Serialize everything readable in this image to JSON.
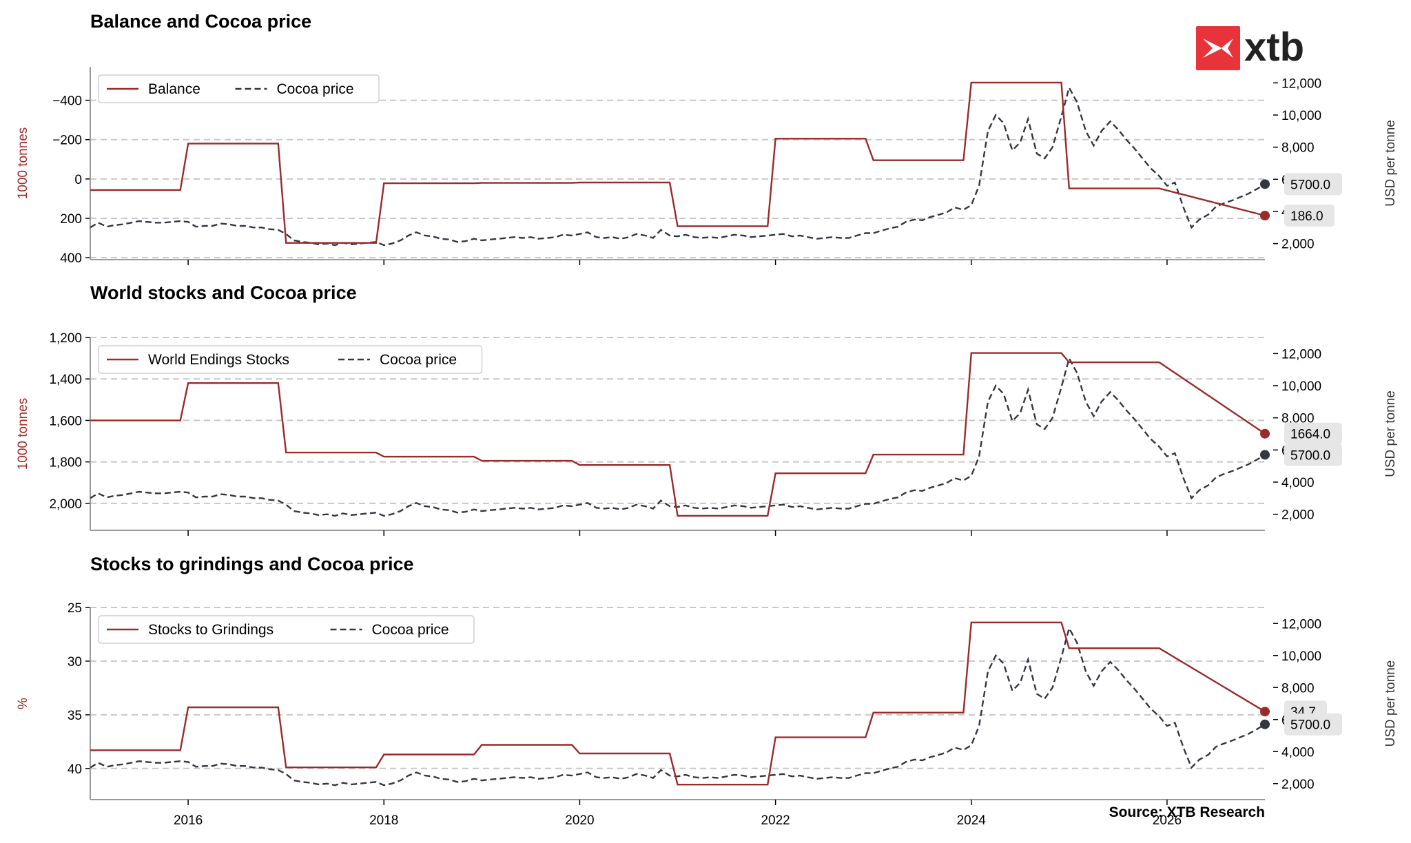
{
  "colors": {
    "primary": "#9b2a2a",
    "price": "#333740",
    "grid": "#c8c8c8",
    "axis": "#9a9a9a",
    "label_bg": "#e6e6e6",
    "logo_red": "#e8333a"
  },
  "brand": {
    "logo_text": "xtb",
    "logo_icon": "xtb-logo-icon"
  },
  "source": "Source: XTB Research",
  "x_axis": {
    "range": [
      2015.0,
      2027.0
    ],
    "ticks": [
      2016,
      2018,
      2020,
      2022,
      2024,
      2026
    ],
    "tick_labels": [
      "2016",
      "2018",
      "2020",
      "2022",
      "2024",
      "2026"
    ]
  },
  "cocoa_price": [
    [
      2015.0,
      3000
    ],
    [
      2015.08,
      3300
    ],
    [
      2015.17,
      3050
    ],
    [
      2015.25,
      3150
    ],
    [
      2015.33,
      3200
    ],
    [
      2015.42,
      3300
    ],
    [
      2015.5,
      3400
    ],
    [
      2015.58,
      3350
    ],
    [
      2015.67,
      3300
    ],
    [
      2015.75,
      3300
    ],
    [
      2015.83,
      3350
    ],
    [
      2015.92,
      3400
    ],
    [
      2016.0,
      3350
    ],
    [
      2016.08,
      3050
    ],
    [
      2016.17,
      3100
    ],
    [
      2016.25,
      3100
    ],
    [
      2016.33,
      3250
    ],
    [
      2016.42,
      3200
    ],
    [
      2016.5,
      3100
    ],
    [
      2016.58,
      3100
    ],
    [
      2016.67,
      3000
    ],
    [
      2016.75,
      3000
    ],
    [
      2016.83,
      2900
    ],
    [
      2016.92,
      2850
    ],
    [
      2017.0,
      2600
    ],
    [
      2017.08,
      2200
    ],
    [
      2017.17,
      2100
    ],
    [
      2017.25,
      2050
    ],
    [
      2017.33,
      1950
    ],
    [
      2017.42,
      2000
    ],
    [
      2017.5,
      1900
    ],
    [
      2017.58,
      2050
    ],
    [
      2017.67,
      1950
    ],
    [
      2017.75,
      2000
    ],
    [
      2017.83,
      2050
    ],
    [
      2017.92,
      2100
    ],
    [
      2018.0,
      1900
    ],
    [
      2018.08,
      2000
    ],
    [
      2018.17,
      2200
    ],
    [
      2018.25,
      2500
    ],
    [
      2018.33,
      2700
    ],
    [
      2018.42,
      2500
    ],
    [
      2018.5,
      2450
    ],
    [
      2018.58,
      2300
    ],
    [
      2018.67,
      2250
    ],
    [
      2018.75,
      2100
    ],
    [
      2018.83,
      2150
    ],
    [
      2018.92,
      2300
    ],
    [
      2019.0,
      2200
    ],
    [
      2019.08,
      2250
    ],
    [
      2019.17,
      2300
    ],
    [
      2019.25,
      2350
    ],
    [
      2019.33,
      2400
    ],
    [
      2019.42,
      2350
    ],
    [
      2019.5,
      2400
    ],
    [
      2019.58,
      2300
    ],
    [
      2019.67,
      2350
    ],
    [
      2019.75,
      2400
    ],
    [
      2019.83,
      2550
    ],
    [
      2019.92,
      2500
    ],
    [
      2020.0,
      2600
    ],
    [
      2020.08,
      2700
    ],
    [
      2020.17,
      2400
    ],
    [
      2020.25,
      2350
    ],
    [
      2020.33,
      2400
    ],
    [
      2020.42,
      2300
    ],
    [
      2020.5,
      2400
    ],
    [
      2020.58,
      2600
    ],
    [
      2020.67,
      2500
    ],
    [
      2020.75,
      2350
    ],
    [
      2020.83,
      2850
    ],
    [
      2020.92,
      2500
    ],
    [
      2021.0,
      2450
    ],
    [
      2021.08,
      2550
    ],
    [
      2021.17,
      2400
    ],
    [
      2021.25,
      2350
    ],
    [
      2021.33,
      2400
    ],
    [
      2021.42,
      2350
    ],
    [
      2021.5,
      2450
    ],
    [
      2021.58,
      2550
    ],
    [
      2021.67,
      2500
    ],
    [
      2021.75,
      2400
    ],
    [
      2021.83,
      2450
    ],
    [
      2021.92,
      2500
    ],
    [
      2022.0,
      2550
    ],
    [
      2022.08,
      2600
    ],
    [
      2022.17,
      2450
    ],
    [
      2022.25,
      2500
    ],
    [
      2022.33,
      2400
    ],
    [
      2022.42,
      2300
    ],
    [
      2022.5,
      2350
    ],
    [
      2022.58,
      2400
    ],
    [
      2022.67,
      2350
    ],
    [
      2022.75,
      2350
    ],
    [
      2022.83,
      2500
    ],
    [
      2022.92,
      2650
    ],
    [
      2023.0,
      2650
    ],
    [
      2023.08,
      2800
    ],
    [
      2023.17,
      2950
    ],
    [
      2023.25,
      3050
    ],
    [
      2023.33,
      3350
    ],
    [
      2023.42,
      3500
    ],
    [
      2023.5,
      3450
    ],
    [
      2023.58,
      3650
    ],
    [
      2023.67,
      3800
    ],
    [
      2023.75,
      3950
    ],
    [
      2023.83,
      4250
    ],
    [
      2023.92,
      4100
    ],
    [
      2024.0,
      4400
    ],
    [
      2024.08,
      5600
    ],
    [
      2024.17,
      9000
    ],
    [
      2024.25,
      10000
    ],
    [
      2024.33,
      9500
    ],
    [
      2024.42,
      7800
    ],
    [
      2024.5,
      8300
    ],
    [
      2024.58,
      9750
    ],
    [
      2024.67,
      7600
    ],
    [
      2024.75,
      7300
    ],
    [
      2024.83,
      8000
    ],
    [
      2024.92,
      9900
    ],
    [
      2025.0,
      11700
    ],
    [
      2025.08,
      10800
    ],
    [
      2025.17,
      9000
    ],
    [
      2025.25,
      8100
    ],
    [
      2025.33,
      9000
    ],
    [
      2025.42,
      9600
    ],
    [
      2025.5,
      9100
    ],
    [
      2025.58,
      8500
    ],
    [
      2025.67,
      7900
    ],
    [
      2025.75,
      7300
    ],
    [
      2025.83,
      6700
    ],
    [
      2025.92,
      6200
    ],
    [
      2026.0,
      5600
    ],
    [
      2026.08,
      5800
    ],
    [
      2026.17,
      4200
    ],
    [
      2026.25,
      3000
    ],
    [
      2026.33,
      3500
    ],
    [
      2026.42,
      3800
    ],
    [
      2026.5,
      4300
    ],
    [
      2026.58,
      4500
    ],
    [
      2026.67,
      4700
    ],
    [
      2026.75,
      4900
    ],
    [
      2026.83,
      5100
    ],
    [
      2026.92,
      5400
    ],
    [
      2027.0,
      5700
    ]
  ],
  "panels": [
    {
      "title": "Balance and Cocoa price",
      "ylabel": "1000 tonnes",
      "ylabel_right": "USD per tonne",
      "yticks": [
        -400,
        -200,
        0,
        200,
        400
      ],
      "ytick_labels": [
        "−400",
        "−200",
        "0",
        "200",
        "400"
      ],
      "ylim": [
        -570,
        410
      ],
      "inverted": true,
      "series_name": "Balance",
      "price_name": "Cocoa price",
      "steps": [
        [
          2015.0,
          56
        ],
        [
          2015.92,
          56
        ],
        [
          2016.0,
          -180
        ],
        [
          2016.92,
          -180
        ],
        [
          2017.0,
          325
        ],
        [
          2017.92,
          325
        ],
        [
          2018.0,
          22
        ],
        [
          2018.92,
          22
        ],
        [
          2019.0,
          20
        ],
        [
          2019.92,
          20
        ],
        [
          2020.0,
          18
        ],
        [
          2020.92,
          18
        ],
        [
          2021.0,
          240
        ],
        [
          2021.92,
          240
        ],
        [
          2022.0,
          -205
        ],
        [
          2022.92,
          -205
        ],
        [
          2023.0,
          -95
        ],
        [
          2023.92,
          -95
        ],
        [
          2024.0,
          -490
        ],
        [
          2024.92,
          -490
        ],
        [
          2025.0,
          48
        ],
        [
          2025.92,
          48
        ],
        [
          2027.0,
          186
        ]
      ],
      "end_value_label": "186.0",
      "end_price_label": "5700.0",
      "legend_style": "box"
    },
    {
      "title": "World stocks and Cocoa price",
      "ylabel": "1000 tonnes",
      "ylabel_right": "USD per tonne",
      "yticks": [
        1200,
        1400,
        1600,
        1800,
        2000
      ],
      "ytick_labels": [
        "1,200",
        "1,400",
        "1,600",
        "1,800",
        "2,000"
      ],
      "ylim": [
        1200,
        2130
      ],
      "inverted": true,
      "series_name": "World Endings Stocks",
      "price_name": "Cocoa price",
      "steps": [
        [
          2015.0,
          1600
        ],
        [
          2015.92,
          1600
        ],
        [
          2016.0,
          1420
        ],
        [
          2016.92,
          1420
        ],
        [
          2017.0,
          1755
        ],
        [
          2017.92,
          1755
        ],
        [
          2018.0,
          1775
        ],
        [
          2018.92,
          1775
        ],
        [
          2019.0,
          1795
        ],
        [
          2019.92,
          1795
        ],
        [
          2020.0,
          1815
        ],
        [
          2020.92,
          1815
        ],
        [
          2021.0,
          2060
        ],
        [
          2021.92,
          2060
        ],
        [
          2022.0,
          1855
        ],
        [
          2022.92,
          1855
        ],
        [
          2023.0,
          1765
        ],
        [
          2023.92,
          1765
        ],
        [
          2024.0,
          1275
        ],
        [
          2024.92,
          1275
        ],
        [
          2025.0,
          1320
        ],
        [
          2025.92,
          1320
        ],
        [
          2027.0,
          1664
        ]
      ],
      "end_value_label": "1664.0",
      "end_price_label": "5700.0",
      "legend_style": "box"
    },
    {
      "title": "Stocks to grindings and Cocoa price",
      "ylabel": "%",
      "ylabel_right": "USD per tonne",
      "yticks": [
        25,
        30,
        35,
        40
      ],
      "ytick_labels": [
        "25",
        "30",
        "35",
        "40"
      ],
      "ylim": [
        25,
        42.9
      ],
      "inverted": true,
      "series_name": "Stocks to Grindings",
      "price_name": "Cocoa price",
      "steps": [
        [
          2015.0,
          38.3
        ],
        [
          2015.92,
          38.3
        ],
        [
          2016.0,
          34.3
        ],
        [
          2016.92,
          34.3
        ],
        [
          2017.0,
          39.9
        ],
        [
          2017.92,
          39.9
        ],
        [
          2018.0,
          38.7
        ],
        [
          2018.92,
          38.7
        ],
        [
          2019.0,
          37.8
        ],
        [
          2019.92,
          37.8
        ],
        [
          2020.0,
          38.6
        ],
        [
          2020.92,
          38.6
        ],
        [
          2021.0,
          41.5
        ],
        [
          2021.92,
          41.5
        ],
        [
          2022.0,
          37.1
        ],
        [
          2022.92,
          37.1
        ],
        [
          2023.0,
          34.8
        ],
        [
          2023.92,
          34.8
        ],
        [
          2024.0,
          26.4
        ],
        [
          2024.92,
          26.4
        ],
        [
          2025.0,
          28.8
        ],
        [
          2025.92,
          28.8
        ],
        [
          2027.0,
          34.7
        ]
      ],
      "end_value_label": "34.7",
      "end_price_label": "5700.0",
      "legend_style": "box"
    }
  ],
  "chart_data": [
    {
      "type": "line",
      "title": "Balance and Cocoa price",
      "ylabel": "1000 tonnes",
      "ylabel_right": "USD per tonne",
      "ylim": [
        -570,
        410
      ],
      "y_inverted": true,
      "y2_ticks": [
        2000,
        4000,
        6000,
        8000,
        10000,
        12000
      ],
      "legend": [
        "Balance",
        "Cocoa price"
      ],
      "legend_position": "top-left",
      "grid": "horizontal dashed"
    },
    {
      "type": "line",
      "title": "World stocks and Cocoa price",
      "ylabel": "1000 tonnes",
      "ylabel_right": "USD per tonne",
      "ylim": [
        1200,
        2130
      ],
      "y_inverted": true,
      "y2_ticks": [
        2000,
        4000,
        6000,
        8000,
        10000,
        12000
      ],
      "legend": [
        "World Endings Stocks",
        "Cocoa price"
      ],
      "legend_position": "top-left",
      "grid": "horizontal dashed"
    },
    {
      "type": "line",
      "title": "Stocks to grindings and Cocoa price",
      "ylabel": "%",
      "ylabel_right": "USD per tonne",
      "ylim": [
        25,
        42.9
      ],
      "y_inverted": true,
      "y2_ticks": [
        2000,
        4000,
        6000,
        8000,
        10000,
        12000
      ],
      "legend": [
        "Stocks to Grindings",
        "Cocoa price"
      ],
      "legend_position": "top-left",
      "grid": "horizontal dashed"
    }
  ],
  "price_axis": {
    "ticks": [
      2000,
      4000,
      6000,
      8000,
      10000,
      12000
    ],
    "tick_labels": [
      "2,000",
      "4,000",
      "6,000",
      "8,000",
      "10,000",
      "12,000"
    ],
    "ylim": [
      1000,
      13000
    ]
  }
}
